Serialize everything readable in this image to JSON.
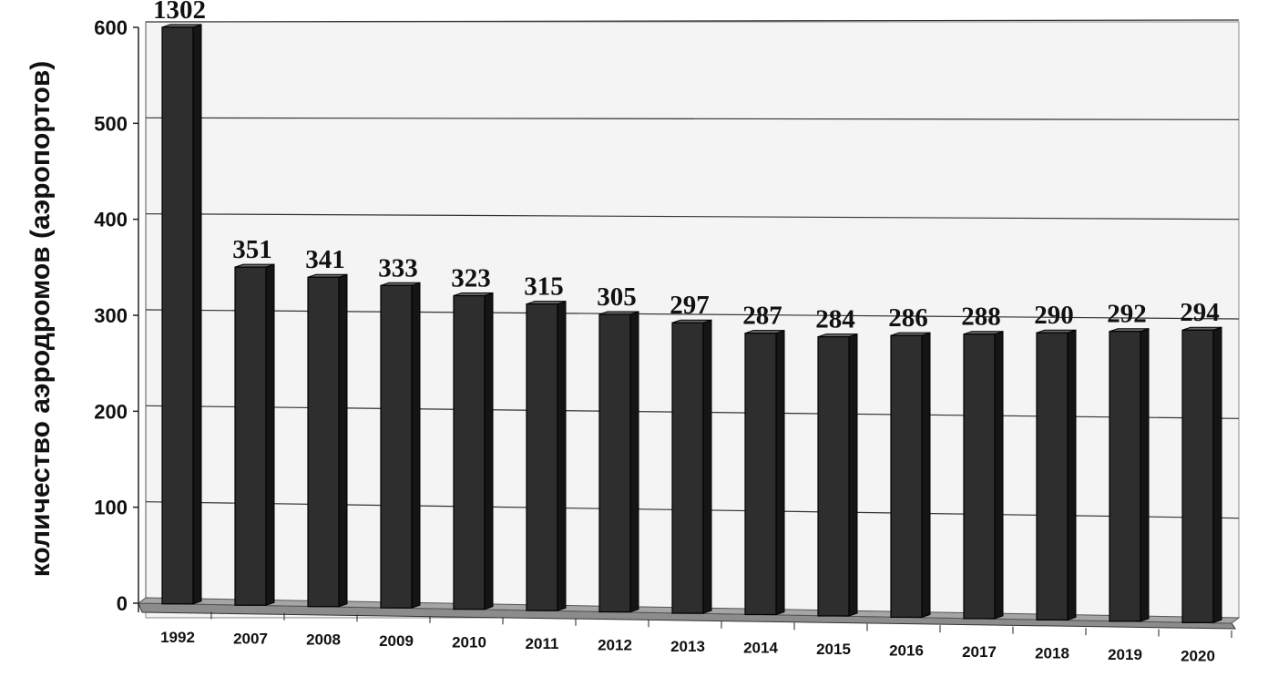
{
  "chart_data": {
    "type": "bar",
    "title": "",
    "xlabel": "",
    "ylabel": "количество аэродромов (аэропортов)",
    "ylim": [
      0,
      600
    ],
    "yticks": [
      0,
      100,
      200,
      300,
      400,
      500,
      600
    ],
    "grid": true,
    "legend": "none",
    "categories": [
      "1992",
      "2007",
      "2008",
      "2009",
      "2010",
      "2011",
      "2012",
      "2013",
      "2014",
      "2015",
      "2016",
      "2017",
      "2018",
      "2019",
      "2020"
    ],
    "values": [
      1302,
      351,
      341,
      333,
      323,
      315,
      305,
      297,
      287,
      284,
      286,
      288,
      290,
      292,
      294
    ],
    "data_labels": [
      "1302",
      "351",
      "341",
      "333",
      "323",
      "315",
      "305",
      "297",
      "287",
      "284",
      "286",
      "288",
      "290",
      "292",
      "294"
    ],
    "colors": {
      "bar_front": "#2e2e2e",
      "bar_side": "#151515",
      "bar_top": "#6a6a6a",
      "floor": "#8c8c8c",
      "grid": "#333333"
    }
  }
}
